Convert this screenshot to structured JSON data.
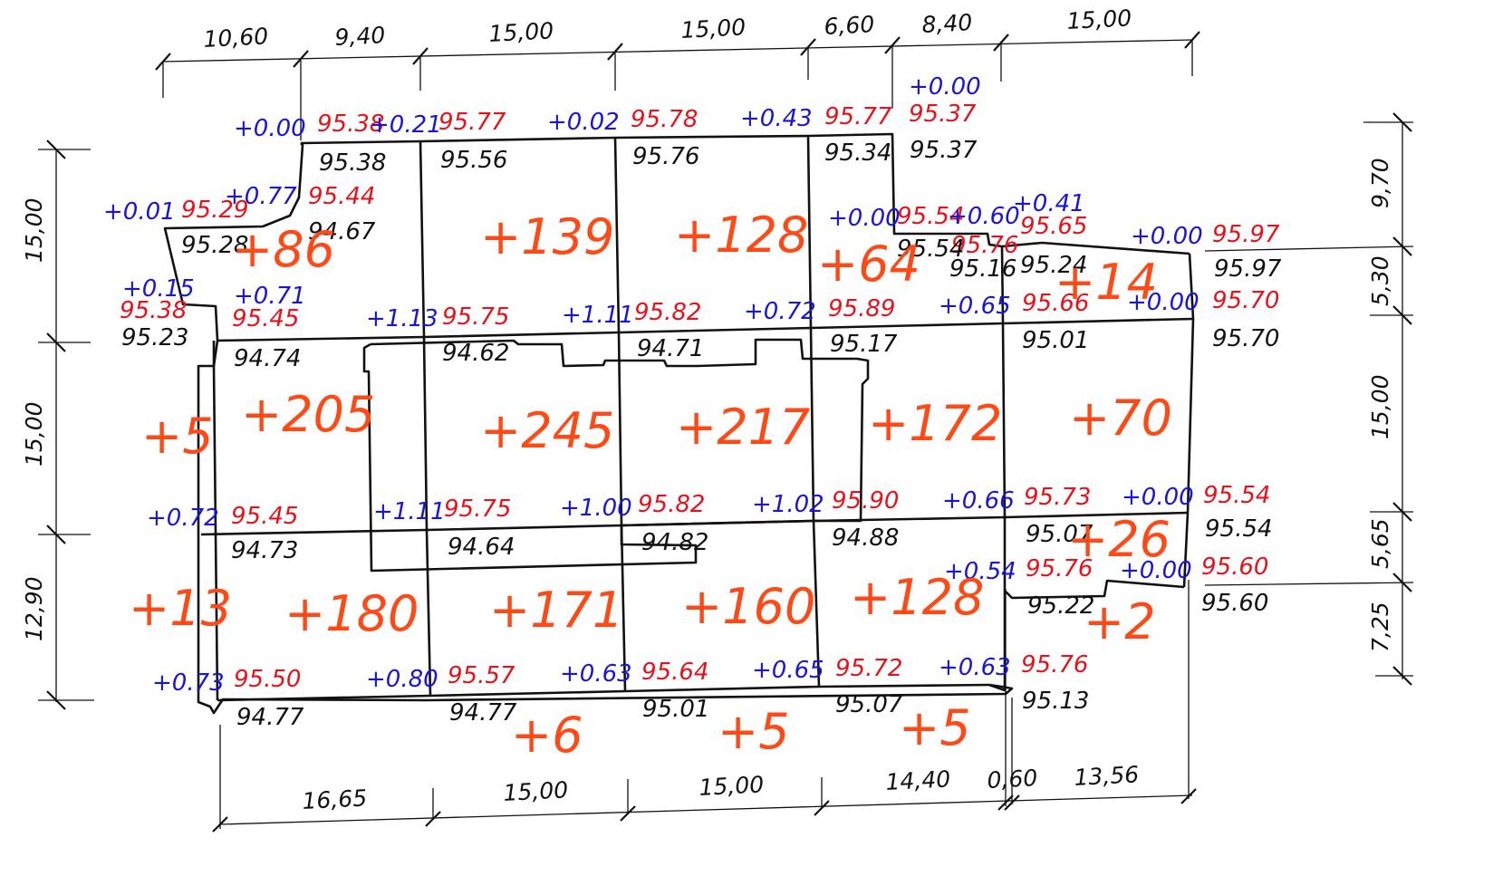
{
  "dimensions": {
    "top": [
      "10,60",
      "9,40",
      "15,00",
      "15,00",
      "6,60",
      "8,40",
      "15,00"
    ],
    "bottom": [
      "16,65",
      "15,00",
      "15,00",
      "14,40",
      "0,60",
      "13,56"
    ],
    "left": [
      "15,00",
      "15,00",
      "12,90"
    ],
    "right": [
      "9,70",
      "5,30",
      "15,00",
      "5,65",
      "7,25"
    ]
  },
  "design_elevations": [
    "95.38",
    "95.77",
    "95.78",
    "95.77",
    "95.37",
    "95.29",
    "95.44",
    "95.38",
    "95.45",
    "95.75",
    "95.82",
    "95.89",
    "95.54",
    "95.76",
    "95.65",
    "95.66",
    "95.97",
    "95.70",
    "95.45",
    "95.75",
    "95.82",
    "95.90",
    "95.73",
    "95.54",
    "95.76",
    "95.60",
    "95.50",
    "95.57",
    "95.64",
    "95.72",
    "95.76"
  ],
  "work_marks": [
    "+0.00",
    "+0.21",
    "+0.02",
    "+0.43",
    "+0.00",
    "+0.01",
    "+0.77",
    "+0.15",
    "+0.71",
    "+1.13",
    "+1.11",
    "+0.72",
    "+0.00",
    "+0.60",
    "+0.41",
    "+0.65",
    "+0.00",
    "+0.00",
    "+0.72",
    "+1.11",
    "+1.00",
    "+1.02",
    "+0.66",
    "+0.00",
    "+0.54",
    "+0.00",
    "+0.73",
    "+0.80",
    "+0.63",
    "+0.65",
    "+0.63"
  ],
  "existing_elevations": [
    "95.38",
    "95.56",
    "95.76",
    "95.34",
    "95.37",
    "95.28",
    "94.67",
    "95.23",
    "95.54",
    "95.16",
    "95.24",
    "95.97",
    "94.74",
    "94.62",
    "94.71",
    "95.17",
    "95.01",
    "95.70",
    "94.73",
    "94.64",
    "94.82",
    "94.88",
    "95.07",
    "95.54",
    "95.22",
    "95.60",
    "94.77",
    "94.77",
    "95.01",
    "95.07",
    "95.13"
  ],
  "volumes": [
    "+86",
    "+139",
    "+128",
    "+64",
    "+14",
    "+5",
    "+205",
    "+245",
    "+217",
    "+172",
    "+70",
    "+13",
    "+180",
    "+171",
    "+160",
    "+128",
    "+26",
    "+2",
    "+6",
    "+5",
    "+5"
  ],
  "colors": {
    "design": "#e8101a",
    "work": "#1a14d8",
    "existing": "#111111",
    "volume": "#ff4a17",
    "lines": "#111111"
  }
}
